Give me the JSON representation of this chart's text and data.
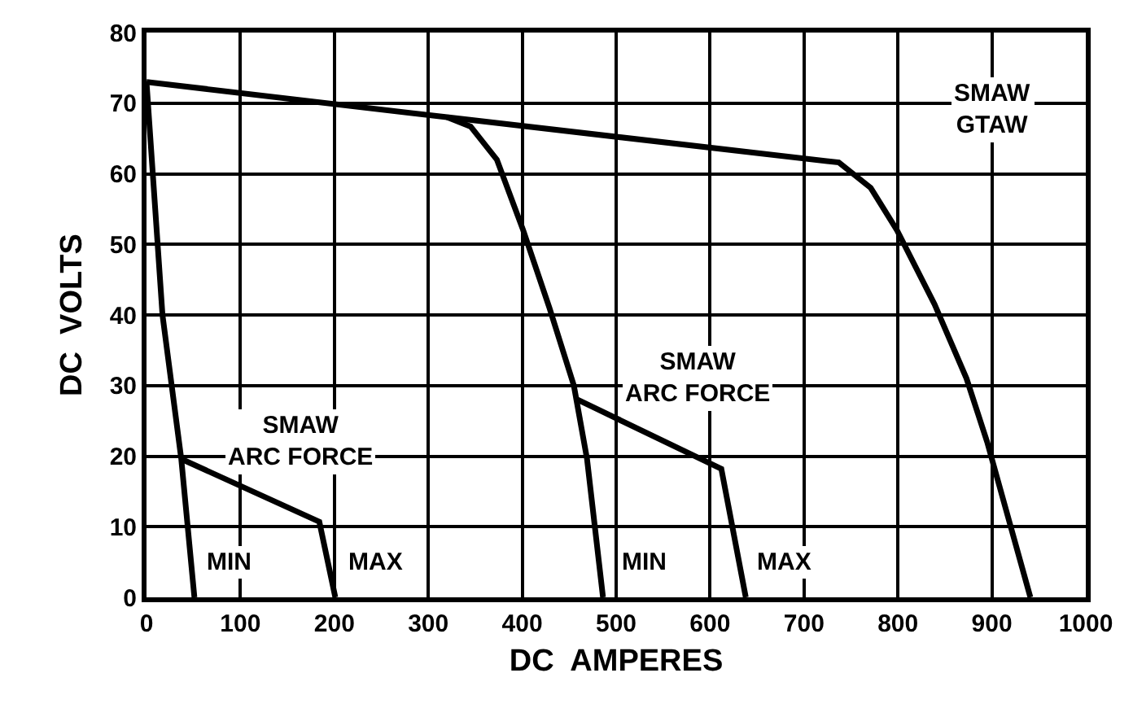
{
  "chart_data": {
    "type": "line",
    "xlabel": "DC  AMPERES",
    "ylabel": "DC  VOLTS",
    "xlim": [
      0,
      1000
    ],
    "xticks": [
      0,
      100,
      200,
      300,
      400,
      500,
      600,
      700,
      800,
      900,
      1000
    ],
    "ylim": [
      0,
      80
    ],
    "yticks": [
      0,
      10,
      20,
      30,
      40,
      50,
      60,
      70,
      80
    ],
    "grid": true,
    "marker": "none",
    "line_style": "solid",
    "series": [
      {
        "color": "#000000",
        "x": [
          0,
          320,
          737,
          771,
          799,
          839,
          873,
          895,
          941
        ],
        "values": [
          73,
          68,
          61.6,
          58,
          52,
          41.5,
          31,
          22,
          0
        ]
      },
      {
        "color": "#000000",
        "x": [
          320,
          345,
          373,
          401,
          429,
          455,
          469,
          486
        ],
        "values": [
          68,
          66.7,
          62,
          52,
          41,
          30,
          19.6,
          0
        ]
      },
      {
        "color": "#000000",
        "x": [
          0,
          17,
          37,
          51
        ],
        "values": [
          73,
          40,
          19.6,
          0
        ]
      },
      {
        "color": "#000000",
        "x": [
          37,
          184,
          201
        ],
        "values": [
          19.6,
          10.7,
          0
        ]
      },
      {
        "color": "#000000",
        "x": [
          459,
          612,
          638
        ],
        "values": [
          28,
          18.2,
          0
        ]
      }
    ],
    "annotations": [
      "SMAW\nGTAW",
      "SMAW\nARC FORCE",
      "SMAW\nARC FORCE",
      {
        "text": "MIN",
        "x": 88,
        "y": 5
      },
      {
        "text": "MAX",
        "x": 243,
        "y": 5
      },
      {
        "text": "MIN",
        "x": 530,
        "y": 5
      },
      {
        "text": "MAX",
        "x": 679,
        "y": 5
      }
    ]
  }
}
